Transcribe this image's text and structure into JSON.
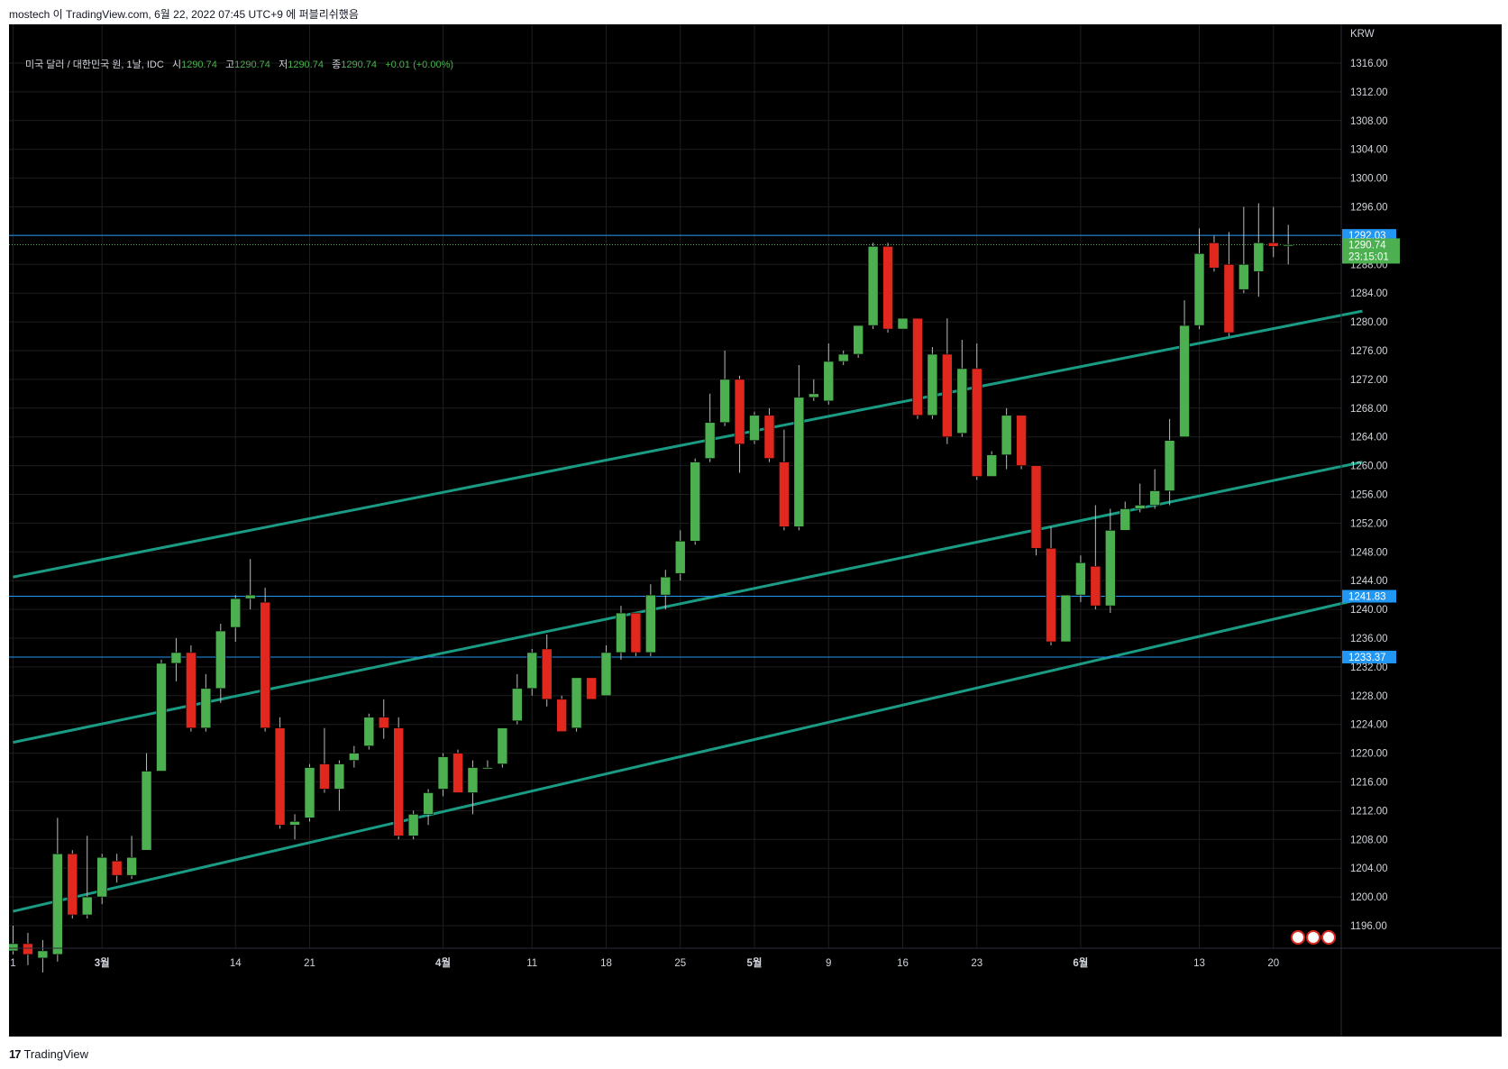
{
  "header": {
    "publish_info": "mostech 이 TradingView.com, 6월 22, 2022 07:45 UTC+9 에 퍼블리쉬했음"
  },
  "legend": {
    "symbol": "미국 달러 / 대한민국 원, 1날, IDC",
    "open_label": "시",
    "open": "1290.74",
    "high_label": "고",
    "high": "1290.74",
    "low_label": "저",
    "low": "1290.74",
    "close_label": "종",
    "close": "1290.74",
    "change": "+0.01 (+0.00%)"
  },
  "footer": {
    "logo_mark": "17",
    "brand": "TradingView"
  },
  "colors": {
    "background": "#000000",
    "up": "#4caf50",
    "down": "#e0281e",
    "channel": "#1a9b84",
    "hline": "#2196f3",
    "grid": "#1e1e1e",
    "axis_text": "#d1d4dc"
  },
  "chart_data": {
    "type": "candlestick",
    "currency_label": "KRW",
    "y_ticks": [
      1196,
      1200,
      1204,
      1208,
      1212,
      1216,
      1220,
      1224,
      1228,
      1232,
      1236,
      1240,
      1244,
      1248,
      1252,
      1256,
      1260,
      1264,
      1268,
      1272,
      1276,
      1280,
      1284,
      1288,
      1292,
      1296,
      1300,
      1304,
      1308,
      1312,
      1316
    ],
    "ylim": [
      1192,
      1320
    ],
    "x_labels": [
      {
        "label": "1",
        "index": 0
      },
      {
        "label": "3월",
        "index": 6
      },
      {
        "label": "14",
        "index": 15
      },
      {
        "label": "21",
        "index": 20
      },
      {
        "label": "4월",
        "index": 29
      },
      {
        "label": "11",
        "index": 35
      },
      {
        "label": "18",
        "index": 40
      },
      {
        "label": "25",
        "index": 45
      },
      {
        "label": "5월",
        "index": 50
      },
      {
        "label": "9",
        "index": 55
      },
      {
        "label": "16",
        "index": 60
      },
      {
        "label": "23",
        "index": 65
      },
      {
        "label": "6월",
        "index": 72
      },
      {
        "label": "13",
        "index": 80
      },
      {
        "label": "20",
        "index": 85
      }
    ],
    "candles": [
      {
        "o": 1192.5,
        "h": 1196.0,
        "l": 1192.0,
        "c": 1193.5
      },
      {
        "o": 1193.5,
        "h": 1195.0,
        "l": 1190.5,
        "c": 1192.0
      },
      {
        "o": 1191.5,
        "h": 1194.0,
        "l": 1189.5,
        "c": 1192.5
      },
      {
        "o": 1192.0,
        "h": 1211.0,
        "l": 1191.0,
        "c": 1206.0
      },
      {
        "o": 1206.0,
        "h": 1206.5,
        "l": 1197.0,
        "c": 1197.5
      },
      {
        "o": 1197.5,
        "h": 1208.5,
        "l": 1197.0,
        "c": 1200.0
      },
      {
        "o": 1200.0,
        "h": 1206.0,
        "l": 1199.0,
        "c": 1205.5
      },
      {
        "o": 1205.0,
        "h": 1206.0,
        "l": 1202.0,
        "c": 1203.0
      },
      {
        "o": 1203.0,
        "h": 1208.5,
        "l": 1202.5,
        "c": 1205.5
      },
      {
        "o": 1206.5,
        "h": 1220.0,
        "l": 1206.5,
        "c": 1217.5
      },
      {
        "o": 1217.5,
        "h": 1233.0,
        "l": 1217.5,
        "c": 1232.5
      },
      {
        "o": 1232.5,
        "h": 1236.0,
        "l": 1230.0,
        "c": 1234.0
      },
      {
        "o": 1234.0,
        "h": 1235.0,
        "l": 1223.0,
        "c": 1223.5
      },
      {
        "o": 1223.5,
        "h": 1231.0,
        "l": 1223.0,
        "c": 1229.0
      },
      {
        "o": 1229.0,
        "h": 1238.0,
        "l": 1227.0,
        "c": 1237.0
      },
      {
        "o": 1237.5,
        "h": 1242.0,
        "l": 1235.5,
        "c": 1241.5
      },
      {
        "o": 1241.5,
        "h": 1247.0,
        "l": 1240.0,
        "c": 1242.0
      },
      {
        "o": 1241.0,
        "h": 1243.0,
        "l": 1223.0,
        "c": 1223.5
      },
      {
        "o": 1223.5,
        "h": 1225.0,
        "l": 1209.5,
        "c": 1210.0
      },
      {
        "o": 1210.0,
        "h": 1211.5,
        "l": 1208.0,
        "c": 1210.5
      },
      {
        "o": 1211.0,
        "h": 1218.5,
        "l": 1210.5,
        "c": 1218.0
      },
      {
        "o": 1218.5,
        "h": 1223.5,
        "l": 1214.5,
        "c": 1215.0
      },
      {
        "o": 1215.0,
        "h": 1219.0,
        "l": 1212.0,
        "c": 1218.5
      },
      {
        "o": 1219.0,
        "h": 1221.0,
        "l": 1218.0,
        "c": 1220.0
      },
      {
        "o": 1221.0,
        "h": 1225.5,
        "l": 1220.5,
        "c": 1225.0
      },
      {
        "o": 1225.0,
        "h": 1227.5,
        "l": 1222.0,
        "c": 1223.5
      },
      {
        "o": 1223.5,
        "h": 1225.0,
        "l": 1208.0,
        "c": 1208.5
      },
      {
        "o": 1208.5,
        "h": 1212.0,
        "l": 1208.0,
        "c": 1211.5
      },
      {
        "o": 1211.5,
        "h": 1215.0,
        "l": 1210.0,
        "c": 1214.5
      },
      {
        "o": 1215.0,
        "h": 1220.0,
        "l": 1214.0,
        "c": 1219.5
      },
      {
        "o": 1220.0,
        "h": 1220.5,
        "l": 1214.5,
        "c": 1214.5
      },
      {
        "o": 1214.5,
        "h": 1219.0,
        "l": 1211.5,
        "c": 1218.0
      },
      {
        "o": 1218.0,
        "h": 1219.0,
        "l": 1218.0,
        "c": 1218.0
      },
      {
        "o": 1218.5,
        "h": 1223.5,
        "l": 1218.0,
        "c": 1223.5
      },
      {
        "o": 1224.5,
        "h": 1231.0,
        "l": 1224.0,
        "c": 1229.0
      },
      {
        "o": 1229.0,
        "h": 1234.5,
        "l": 1228.0,
        "c": 1234.0
      },
      {
        "o": 1234.5,
        "h": 1236.5,
        "l": 1226.5,
        "c": 1227.5
      },
      {
        "o": 1227.5,
        "h": 1228.0,
        "l": 1223.0,
        "c": 1223.0
      },
      {
        "o": 1223.5,
        "h": 1230.5,
        "l": 1223.0,
        "c": 1230.5
      },
      {
        "o": 1230.5,
        "h": 1230.5,
        "l": 1227.5,
        "c": 1227.5
      },
      {
        "o": 1228.0,
        "h": 1235.0,
        "l": 1228.0,
        "c": 1234.0
      },
      {
        "o": 1234.0,
        "h": 1240.5,
        "l": 1233.0,
        "c": 1239.5
      },
      {
        "o": 1239.5,
        "h": 1239.5,
        "l": 1233.5,
        "c": 1234.0
      },
      {
        "o": 1234.0,
        "h": 1243.5,
        "l": 1233.5,
        "c": 1242.0
      },
      {
        "o": 1242.0,
        "h": 1245.5,
        "l": 1240.0,
        "c": 1244.5
      },
      {
        "o": 1245.0,
        "h": 1251.0,
        "l": 1244.0,
        "c": 1249.5
      },
      {
        "o": 1249.5,
        "h": 1261.0,
        "l": 1249.0,
        "c": 1260.5
      },
      {
        "o": 1261.0,
        "h": 1270.0,
        "l": 1260.5,
        "c": 1266.0
      },
      {
        "o": 1266.0,
        "h": 1276.0,
        "l": 1265.5,
        "c": 1272.0
      },
      {
        "o": 1272.0,
        "h": 1272.5,
        "l": 1259.0,
        "c": 1263.0
      },
      {
        "o": 1263.5,
        "h": 1267.5,
        "l": 1263.0,
        "c": 1267.0
      },
      {
        "o": 1267.0,
        "h": 1268.0,
        "l": 1260.5,
        "c": 1261.0
      },
      {
        "o": 1260.5,
        "h": 1265.0,
        "l": 1251.0,
        "c": 1251.5
      },
      {
        "o": 1251.5,
        "h": 1274.0,
        "l": 1251.0,
        "c": 1269.5
      },
      {
        "o": 1269.5,
        "h": 1272.0,
        "l": 1269.0,
        "c": 1270.0
      },
      {
        "o": 1269.0,
        "h": 1277.0,
        "l": 1268.5,
        "c": 1274.5
      },
      {
        "o": 1274.5,
        "h": 1276.0,
        "l": 1274.0,
        "c": 1275.5
      },
      {
        "o": 1275.5,
        "h": 1279.0,
        "l": 1275.0,
        "c": 1279.5
      },
      {
        "o": 1279.5,
        "h": 1291.0,
        "l": 1279.0,
        "c": 1290.5
      },
      {
        "o": 1290.5,
        "h": 1291.0,
        "l": 1278.5,
        "c": 1279.0
      },
      {
        "o": 1279.0,
        "h": 1280.5,
        "l": 1279.0,
        "c": 1280.5
      },
      {
        "o": 1280.5,
        "h": 1280.5,
        "l": 1266.5,
        "c": 1267.0
      },
      {
        "o": 1267.0,
        "h": 1276.5,
        "l": 1266.5,
        "c": 1275.5
      },
      {
        "o": 1275.5,
        "h": 1280.5,
        "l": 1263.0,
        "c": 1264.0
      },
      {
        "o": 1264.5,
        "h": 1277.5,
        "l": 1264.0,
        "c": 1273.5
      },
      {
        "o": 1273.5,
        "h": 1277.0,
        "l": 1258.0,
        "c": 1258.5
      },
      {
        "o": 1258.5,
        "h": 1262.0,
        "l": 1258.5,
        "c": 1261.5
      },
      {
        "o": 1261.5,
        "h": 1268.0,
        "l": 1259.5,
        "c": 1267.0
      },
      {
        "o": 1267.0,
        "h": 1267.0,
        "l": 1259.5,
        "c": 1260.0
      },
      {
        "o": 1260.0,
        "h": 1260.0,
        "l": 1247.5,
        "c": 1248.5
      },
      {
        "o": 1248.5,
        "h": 1251.5,
        "l": 1235.0,
        "c": 1235.5
      },
      {
        "o": 1235.5,
        "h": 1242.0,
        "l": 1235.5,
        "c": 1242.0
      },
      {
        "o": 1242.0,
        "h": 1247.5,
        "l": 1241.0,
        "c": 1246.5
      },
      {
        "o": 1246.0,
        "h": 1254.5,
        "l": 1240.0,
        "c": 1240.5
      },
      {
        "o": 1240.5,
        "h": 1254.0,
        "l": 1239.5,
        "c": 1251.0
      },
      {
        "o": 1251.0,
        "h": 1255.0,
        "l": 1251.0,
        "c": 1254.0
      },
      {
        "o": 1254.0,
        "h": 1257.5,
        "l": 1253.5,
        "c": 1254.5
      },
      {
        "o": 1254.5,
        "h": 1259.5,
        "l": 1254.0,
        "c": 1256.5
      },
      {
        "o": 1256.5,
        "h": 1266.5,
        "l": 1254.5,
        "c": 1263.5
      },
      {
        "o": 1264.0,
        "h": 1283.0,
        "l": 1264.0,
        "c": 1279.5
      },
      {
        "o": 1279.5,
        "h": 1293.0,
        "l": 1279.0,
        "c": 1289.5
      },
      {
        "o": 1291.0,
        "h": 1292.0,
        "l": 1287.0,
        "c": 1287.5
      },
      {
        "o": 1288.0,
        "h": 1292.5,
        "l": 1278.0,
        "c": 1278.5
      },
      {
        "o": 1284.5,
        "h": 1296.0,
        "l": 1284.0,
        "c": 1288.0
      },
      {
        "o": 1287.0,
        "h": 1296.5,
        "l": 1283.5,
        "c": 1291.0
      },
      {
        "o": 1291.0,
        "h": 1296.0,
        "l": 1289.0,
        "c": 1290.5
      },
      {
        "o": 1290.7,
        "h": 1293.5,
        "l": 1288.0,
        "c": 1290.74
      }
    ],
    "channel_lines": [
      {
        "p1": {
          "index": 0,
          "price": 1244.5
        },
        "p2": {
          "index": 91,
          "price": 1281.5
        }
      },
      {
        "p1": {
          "index": 0,
          "price": 1221.5
        },
        "p2": {
          "index": 91,
          "price": 1260.5
        }
      },
      {
        "p1": {
          "index": 0,
          "price": 1198.0
        },
        "p2": {
          "index": 91,
          "price": 1241.5
        }
      }
    ],
    "horizontal_lines": [
      {
        "price": 1292.03,
        "label": "1292.03"
      },
      {
        "price": 1241.83,
        "label": "1241.83"
      },
      {
        "price": 1233.37,
        "label": "1233.37"
      }
    ],
    "last_price": {
      "price": 1290.74,
      "label": "1290.74",
      "countdown": "23:15:01"
    }
  }
}
